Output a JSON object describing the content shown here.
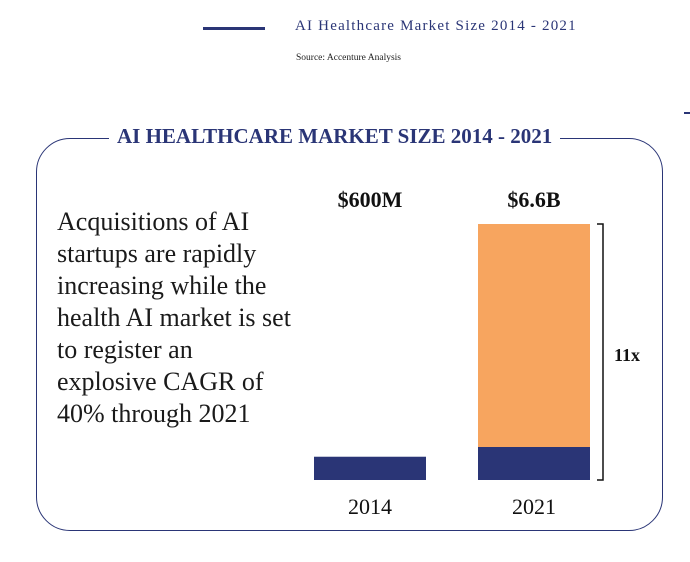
{
  "header": {
    "title": "AI Healthcare Market Size 2014 - 2021",
    "source": "Source: Accenture Analysis",
    "accent_color": "#2a3576"
  },
  "panel": {
    "title": "AI HEALTHCARE MARKET SIZE 2014 - 2021",
    "statement": "Acquisitions of AI startups are rapidly increasing while the health AI market is set to register an explosive CAGR of 40% through 2021"
  },
  "chart_data": {
    "type": "bar",
    "categories": [
      "2014",
      "2021"
    ],
    "values": [
      0.6,
      6.6
    ],
    "value_unit": "$B",
    "data_labels": [
      "$600M",
      "$6.6B"
    ],
    "growth_label": "11x",
    "colors": {
      "base": "#2a3576",
      "growth": "#f7a55f"
    },
    "title": "",
    "xlabel": "",
    "ylabel": ""
  }
}
